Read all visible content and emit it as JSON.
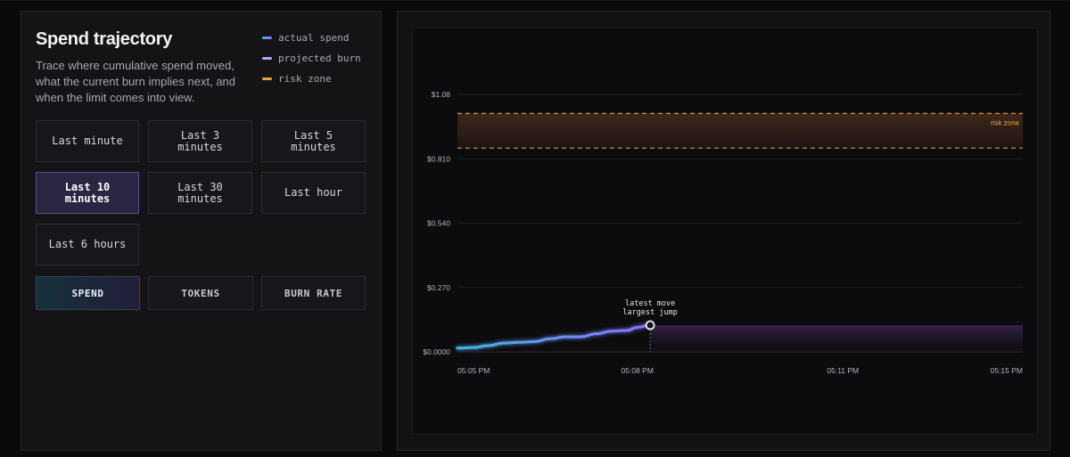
{
  "panel": {
    "title": "Spend trajectory",
    "subtitle": "Trace where cumulative spend moved, what the current burn implies next, and when the limit comes into view."
  },
  "legend": [
    {
      "label": "actual spend",
      "color": "#5b8fe8"
    },
    {
      "label": "projected burn",
      "color": "#b8a3ff"
    },
    {
      "label": "risk zone",
      "color": "#e8a24a"
    }
  ],
  "ranges": [
    {
      "label": "Last minute"
    },
    {
      "label": "Last 3\nminutes"
    },
    {
      "label": "Last 5\nminutes"
    },
    {
      "label": "Last 10\nminutes",
      "selected": true
    },
    {
      "label": "Last 30\nminutes"
    },
    {
      "label": "Last hour"
    },
    {
      "label": "Last 6 hours"
    }
  ],
  "metrics": [
    {
      "label": "SPEND",
      "selected": true
    },
    {
      "label": "TOKENS"
    },
    {
      "label": "BURN RATE"
    }
  ],
  "chart_data": {
    "type": "line",
    "y_ticks": [
      "$1.08",
      "$0.810",
      "$0.540",
      "$0.270",
      "$0.0000"
    ],
    "ylim": [
      0,
      1.08
    ],
    "x_ticks": [
      "05:05 PM",
      "05:08 PM",
      "05:11 PM",
      "05:15 PM"
    ],
    "x_tick_minutes": [
      0,
      3.5,
      7.5,
      11
    ],
    "xlim_minutes": [
      0,
      11
    ],
    "series": [
      {
        "name": "actual spend",
        "color_start": "#47b4e6",
        "color_end": "#8a72ff",
        "x_minutes": [
          0,
          0.3,
          0.6,
          0.9,
          1.2,
          1.5,
          1.8,
          2.1,
          2.4,
          2.7,
          3.0,
          3.3,
          3.5,
          3.75
        ],
        "values": [
          0.016,
          0.018,
          0.026,
          0.037,
          0.04,
          0.043,
          0.055,
          0.063,
          0.063,
          0.076,
          0.087,
          0.09,
          0.103,
          0.112
        ]
      },
      {
        "name": "projected burn",
        "color_start": "#8a72ff",
        "color_end": "#e25a96",
        "x_minutes": [
          3.75,
          11
        ],
        "values": [
          0.112,
          0.112
        ]
      }
    ],
    "risk_zone": {
      "label": "risk zone",
      "from": 0.855,
      "to": 1.0,
      "color": "#e8a24a"
    },
    "annotation": {
      "lines": [
        "latest move",
        "largest jump"
      ],
      "x_minutes": 3.75,
      "value": 0.112
    }
  }
}
